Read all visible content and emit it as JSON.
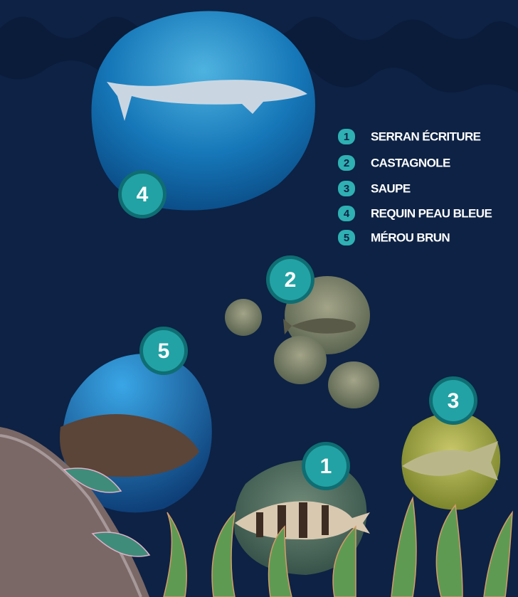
{
  "legend": [
    {
      "number": "1",
      "label": "SERRAN ÉCRITURE"
    },
    {
      "number": "2",
      "label": "CASTAGNOLE"
    },
    {
      "number": "3",
      "label": "SAUPE"
    },
    {
      "number": "4",
      "label": "REQUIN PEAU BLEUE"
    },
    {
      "number": "5",
      "label": "MÉROU BRUN"
    }
  ],
  "badges": [
    {
      "number": "4"
    },
    {
      "number": "2"
    },
    {
      "number": "5"
    },
    {
      "number": "3"
    },
    {
      "number": "1"
    }
  ]
}
